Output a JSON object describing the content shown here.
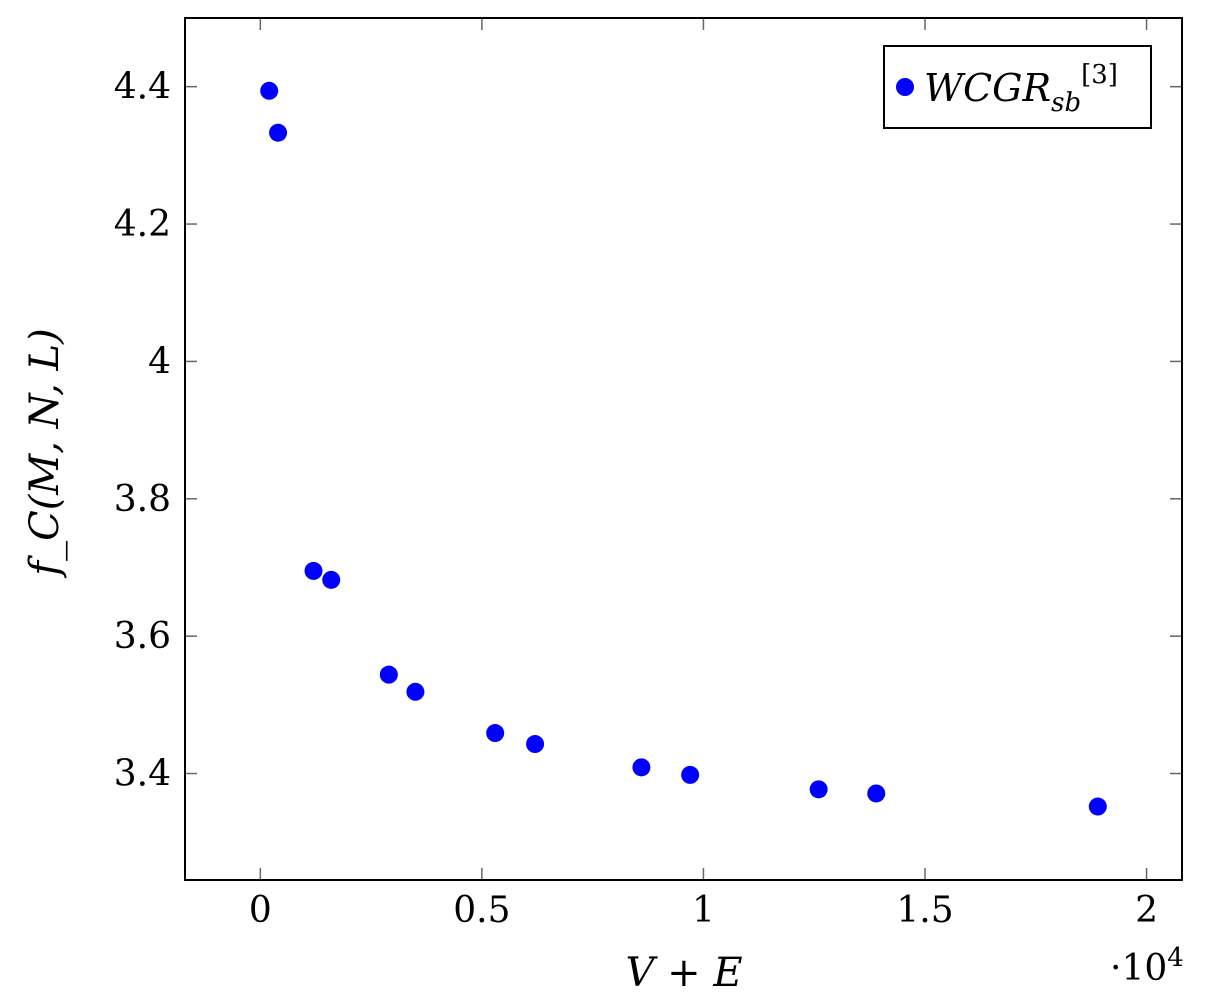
{
  "chart_data": {
    "type": "scatter",
    "title": "",
    "xlabel": "V + E",
    "ylabel": "f_C(M, N, L)",
    "x_multiplier_label": "·10",
    "x_multiplier_exp": "4",
    "xlim": [
      -0.17,
      2.08
    ],
    "ylim": [
      3.245,
      4.5
    ],
    "xticks": [
      0,
      0.5,
      1,
      1.5,
      2
    ],
    "xtick_labels": [
      "0",
      "0.5",
      "1",
      "1.5",
      "2"
    ],
    "yticks": [
      3.4,
      3.6,
      3.8,
      4.0,
      4.2,
      4.4
    ],
    "ytick_labels": [
      "3.4",
      "3.6",
      "3.8",
      "4",
      "4.2",
      "4.4"
    ],
    "grid": false,
    "legend_position": "top-right",
    "series": [
      {
        "name": "WCGR_sb^[3]",
        "color": "#0000ff",
        "marker": "circle",
        "x": [
          0.02,
          0.04,
          0.12,
          0.16,
          0.29,
          0.35,
          0.53,
          0.62,
          0.86,
          0.97,
          1.26,
          1.39,
          1.89
        ],
        "y": [
          4.394,
          4.333,
          3.695,
          3.682,
          3.544,
          3.519,
          3.459,
          3.443,
          3.409,
          3.398,
          3.377,
          3.371,
          3.352
        ]
      }
    ],
    "legend": {
      "main": "WCGR",
      "sub": "sb",
      "sup": "[3]"
    }
  }
}
